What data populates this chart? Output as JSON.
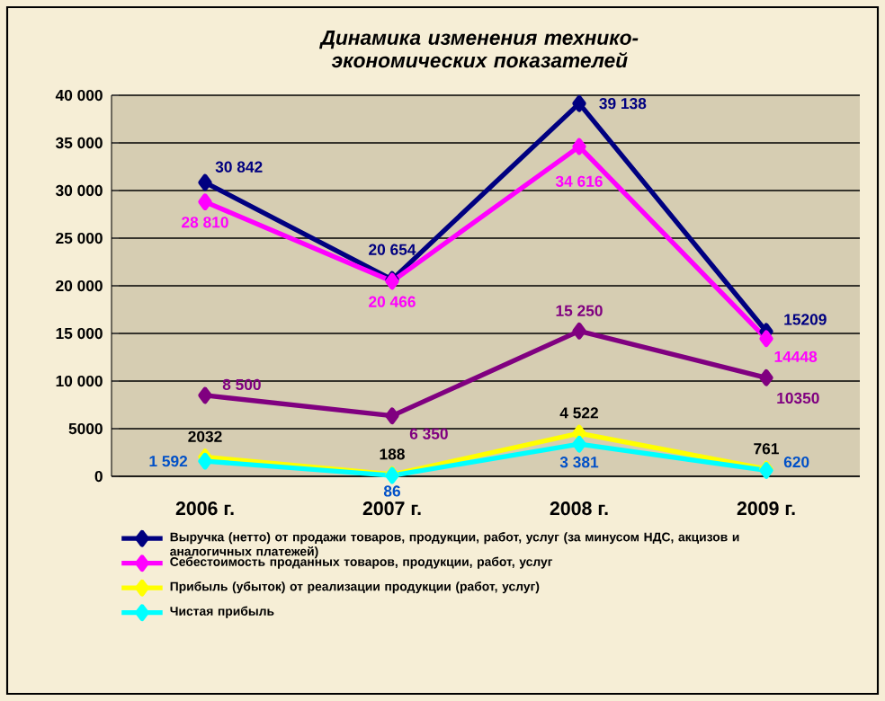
{
  "chart_data": {
    "type": "line",
    "title": "Динамика изменения технико-экономических показателей",
    "categories": [
      "2006 г.",
      "2007 г.",
      "2008 г.",
      "2009 г."
    ],
    "series": [
      {
        "name": "Выручка (нетто) от продажи товаров, продукции, работ, услуг (за минусом НДС, акцизов и аналогичных платежей)",
        "color": "#000080",
        "values": [
          30842,
          20654,
          39138,
          15209
        ],
        "value_labels": [
          "30 842",
          "20 654",
          "39 138",
          "15209"
        ]
      },
      {
        "name": "Себестоимость проданных товаров, продукции, работ, услуг",
        "color": "#ff00ff",
        "values": [
          28810,
          20466,
          34616,
          14448
        ],
        "value_labels": [
          "28 810",
          "20 466",
          "34 616",
          "14448"
        ]
      },
      {
        "color": "#800080",
        "values": [
          8500,
          6350,
          15250,
          10350
        ],
        "value_labels": [
          "8 500",
          "6 350",
          "15 250",
          "10350"
        ]
      },
      {
        "name": "Прибыль (убыток) от реализации продукции (работ, услуг)",
        "color": "#ffff00",
        "values": [
          2032,
          188,
          4522,
          761
        ],
        "value_labels": [
          "2032",
          "188",
          "4 522",
          "761"
        ]
      },
      {
        "name": "Чистая прибыль",
        "color": "#00ffff",
        "values": [
          1592,
          86,
          3381,
          620
        ],
        "value_labels": [
          "1 592",
          "86",
          "3 381",
          "620"
        ]
      }
    ],
    "ylim": [
      0,
      40000
    ],
    "yticks": [
      0,
      5000,
      {
        "value": 10000,
        "label": "10 000"
      },
      {
        "value": 15000,
        "label": "15 000"
      },
      {
        "value": 20000,
        "label": "20 000"
      },
      {
        "value": 25000,
        "label": "25 000"
      },
      {
        "value": 30000,
        "label": "30 000"
      },
      {
        "value": 35000,
        "label": "35 000"
      },
      {
        "value": 40000,
        "label": "40 000"
      }
    ],
    "grid": "y",
    "legend": "bottom",
    "marker": "diamond"
  }
}
